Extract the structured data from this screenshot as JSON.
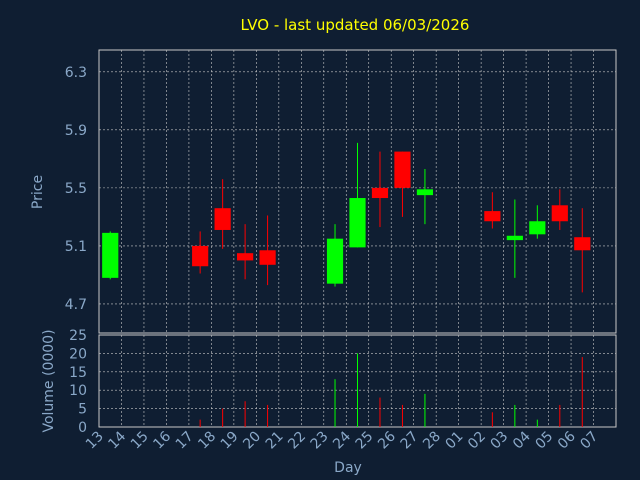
{
  "chart_data": {
    "type": "candlestick",
    "title": "LVO - last updated 06/03/2026",
    "xlabel": "Day",
    "ylabel": "Price",
    "ylabel2": "Volume (0000)",
    "ylim": [
      4.5,
      6.45
    ],
    "yticks": [
      4.7,
      5.1,
      5.5,
      5.9,
      6.3
    ],
    "vol_ylim": [
      0,
      25
    ],
    "vol_yticks": [
      0,
      5,
      10,
      15,
      20,
      25
    ],
    "grid": true,
    "x_labels": [
      "13",
      "14",
      "15",
      "16",
      "17",
      "18",
      "19",
      "20",
      "21",
      "22",
      "23",
      "24",
      "25",
      "26",
      "27",
      "28",
      "01",
      "02",
      "03",
      "04",
      "05",
      "06",
      "07"
    ],
    "candles": [
      {
        "i": 0,
        "open": 4.88,
        "close": 5.19,
        "high": 5.2,
        "low": 4.87,
        "vol": 0
      },
      {
        "i": 4,
        "open": 5.1,
        "close": 4.96,
        "high": 5.2,
        "low": 4.91,
        "vol": 2
      },
      {
        "i": 5,
        "open": 5.36,
        "close": 5.21,
        "high": 5.56,
        "low": 5.08,
        "vol": 5
      },
      {
        "i": 6,
        "open": 5.05,
        "close": 5.0,
        "high": 5.25,
        "low": 4.87,
        "vol": 7
      },
      {
        "i": 7,
        "open": 5.07,
        "close": 4.97,
        "high": 5.31,
        "low": 4.83,
        "vol": 6
      },
      {
        "i": 10,
        "open": 4.84,
        "close": 5.15,
        "high": 5.25,
        "low": 4.82,
        "vol": 13
      },
      {
        "i": 11,
        "open": 5.09,
        "close": 5.43,
        "high": 5.81,
        "low": 5.09,
        "vol": 20
      },
      {
        "i": 12,
        "open": 5.5,
        "close": 5.43,
        "high": 5.75,
        "low": 5.23,
        "vol": 8
      },
      {
        "i": 13,
        "open": 5.75,
        "close": 5.5,
        "high": 5.75,
        "low": 5.3,
        "vol": 6
      },
      {
        "i": 14,
        "open": 5.45,
        "close": 5.49,
        "high": 5.63,
        "low": 5.25,
        "vol": 9
      },
      {
        "i": 17,
        "open": 5.34,
        "close": 5.27,
        "high": 5.47,
        "low": 5.22,
        "vol": 4
      },
      {
        "i": 18,
        "open": 5.14,
        "close": 5.17,
        "high": 5.42,
        "low": 4.88,
        "vol": 6
      },
      {
        "i": 19,
        "open": 5.18,
        "close": 5.27,
        "high": 5.38,
        "low": 5.15,
        "vol": 2
      },
      {
        "i": 20,
        "open": 5.38,
        "close": 5.27,
        "high": 5.49,
        "low": 5.21,
        "vol": 6
      },
      {
        "i": 21,
        "open": 5.16,
        "close": 5.07,
        "high": 5.36,
        "low": 4.78,
        "vol": 19
      }
    ],
    "colors": {
      "up": "#00ff00",
      "down": "#ff0000",
      "title": "#ffff00",
      "axis_text": "#8aa8c8",
      "grid": "#c8c8c8",
      "plot_bg": "#0f1e32"
    }
  }
}
